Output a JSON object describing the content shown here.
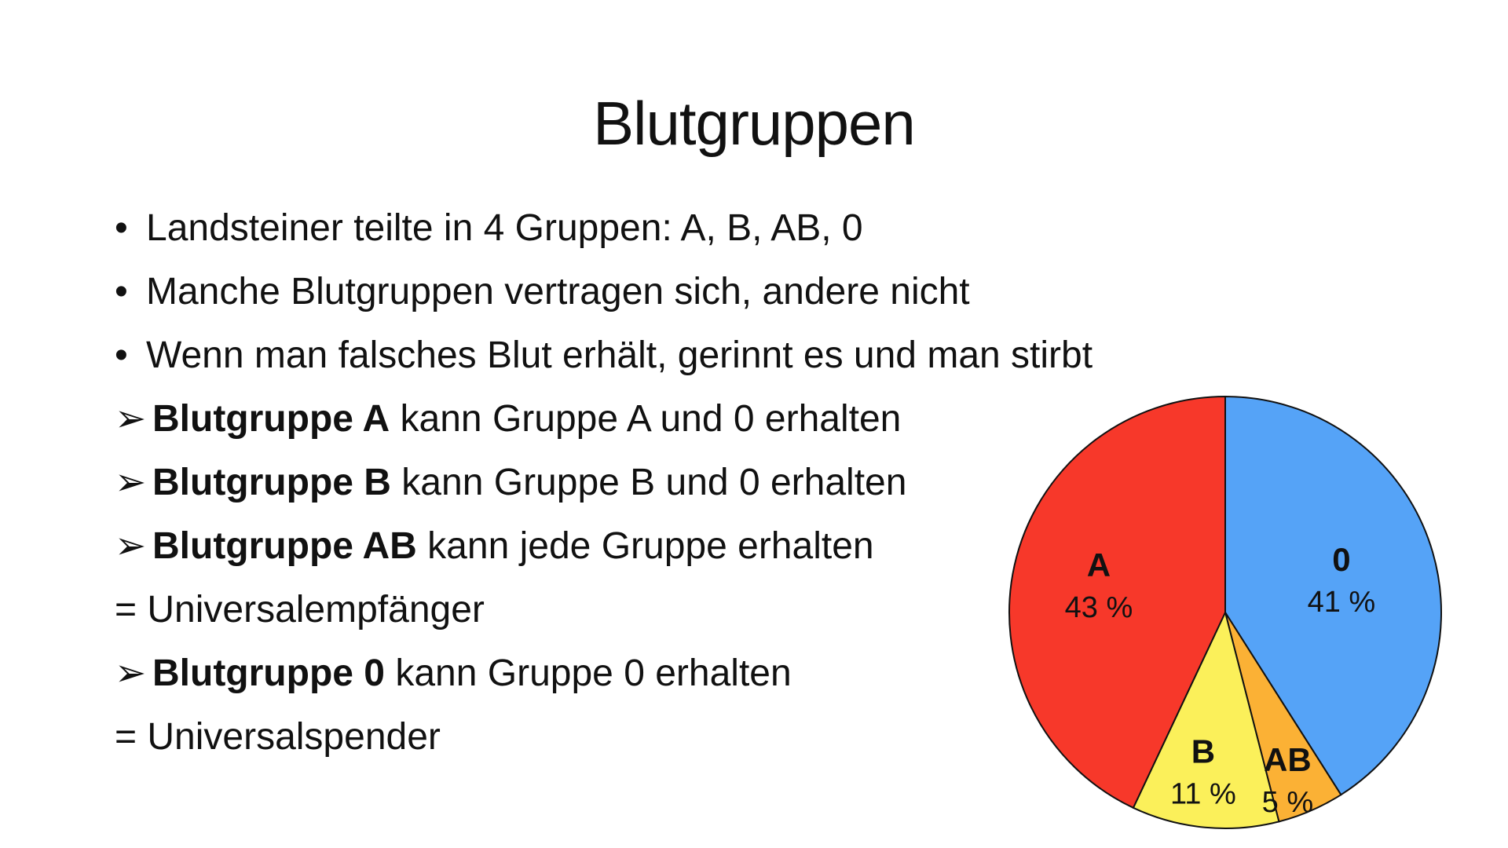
{
  "slide": {
    "title": "Blutgruppen",
    "lines": [
      {
        "marker": "•",
        "kind": "bullet",
        "bold": "",
        "text": "Landsteiner teilte in 4 Gruppen: A, B, AB, 0"
      },
      {
        "marker": "•",
        "kind": "bullet",
        "bold": "",
        "text": "Manche Blutgruppen vertragen sich, andere nicht"
      },
      {
        "marker": "•",
        "kind": "bullet",
        "bold": "",
        "text": "Wenn man falsches Blut erhält, gerinnt es und man stirbt"
      },
      {
        "marker": "➢",
        "kind": "arrow",
        "bold": "Blutgruppe A",
        "text": " kann Gruppe A und 0 erhalten"
      },
      {
        "marker": "➢",
        "kind": "arrow",
        "bold": "Blutgruppe B",
        "text": " kann Gruppe B und 0 erhalten"
      },
      {
        "marker": "➢",
        "kind": "arrow",
        "bold": "Blutgruppe AB",
        "text": " kann jede Gruppe erhalten"
      },
      {
        "marker": "",
        "kind": "eq",
        "bold": "",
        "text": "= Universalempfänger"
      },
      {
        "marker": "➢",
        "kind": "arrow",
        "bold": "Blutgruppe 0",
        "text": " kann Gruppe 0 erhalten"
      },
      {
        "marker": "",
        "kind": "eq",
        "bold": "",
        "text": "= Universalspender"
      }
    ]
  },
  "chart_data": {
    "type": "pie",
    "title": "",
    "start": "12 o'clock",
    "direction": "clockwise",
    "slices": [
      {
        "label": "0",
        "value": 41,
        "value_label": "41 %",
        "color": "#55a3f7"
      },
      {
        "label": "AB",
        "value": 5,
        "value_label": "5 %",
        "color": "#fbb135"
      },
      {
        "label": "B",
        "value": 11,
        "value_label": "11 %",
        "color": "#fbf05a"
      },
      {
        "label": "A",
        "value": 43,
        "value_label": "43 %",
        "color": "#f7382a"
      }
    ],
    "outline_color": "#111111"
  }
}
